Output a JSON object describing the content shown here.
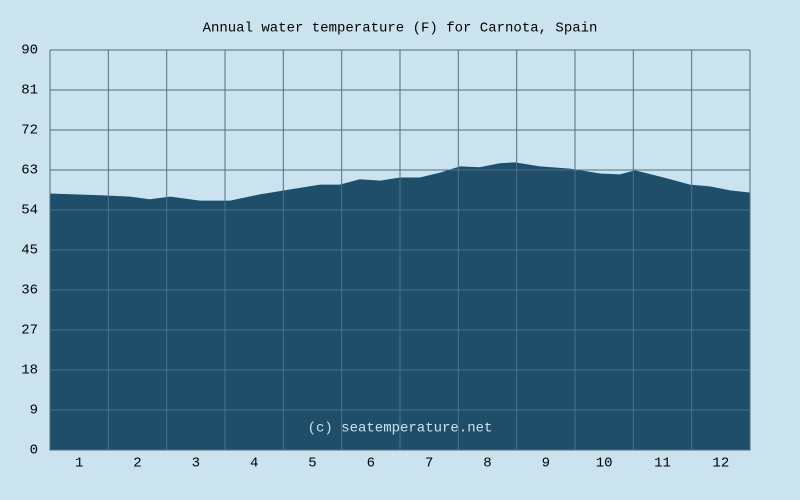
{
  "chart_data": {
    "type": "area",
    "title": "Annual water temperature (F) for Carnota, Spain",
    "annotation": "(c) seatemperature.net",
    "x": [
      0.5,
      1.36,
      1.87,
      2.21,
      2.56,
      3.07,
      3.59,
      4.1,
      4.61,
      5.13,
      5.47,
      5.81,
      6.16,
      6.5,
      6.84,
      7.19,
      7.53,
      7.87,
      8.21,
      8.47,
      8.9,
      9.41,
      9.93,
      10.27,
      10.53,
      10.96,
      11.47,
      11.81,
      12.16,
      12.5
    ],
    "values": [
      57.6,
      57.2,
      56.9,
      56.3,
      56.9,
      56.0,
      56.0,
      57.4,
      58.5,
      59.6,
      59.6,
      60.8,
      60.5,
      61.2,
      61.2,
      62.3,
      63.7,
      63.5,
      64.4,
      64.6,
      63.7,
      63.2,
      62.1,
      61.9,
      62.8,
      61.4,
      59.6,
      59.2,
      58.3,
      57.8
    ],
    "color": "#1f4e6a",
    "xlim": [
      0.5,
      12.5
    ],
    "xticks": [
      1,
      2,
      3,
      4,
      5,
      6,
      7,
      8,
      9,
      10,
      11,
      12
    ],
    "xgrid": [
      1.5,
      2.5,
      3.5,
      4.5,
      5.5,
      6.5,
      7.5,
      8.5,
      9.5,
      10.5,
      11.5
    ],
    "ylim": [
      0,
      90
    ],
    "yticks": [
      0,
      9,
      18,
      27,
      36,
      45,
      54,
      63,
      72,
      81,
      90
    ],
    "grid": true
  }
}
